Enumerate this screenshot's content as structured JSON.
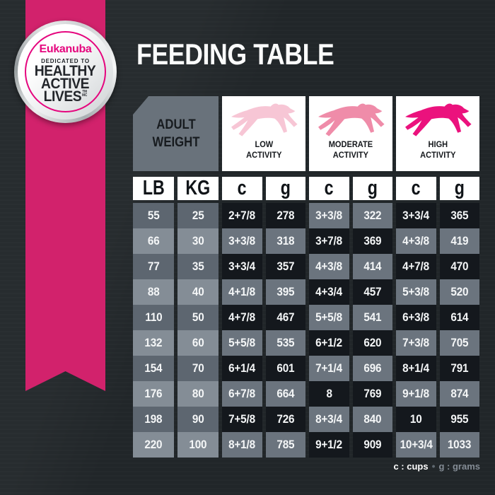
{
  "header": {
    "title": "FEEDING TABLE"
  },
  "badge": {
    "brand": "Eukanuba",
    "dedicated": "DEDICATED TO",
    "line1": "HEALTHY",
    "line2": "ACTIVE",
    "line3": "LIVES",
    "tm": "TM",
    "tm_mc": "MC"
  },
  "colors": {
    "background": "#212629",
    "ribbon_pink": "#D2226C",
    "brand_pink": "#E5067E",
    "dog_low": "#F7C6D5",
    "dog_moderate": "#EF8CA9",
    "dog_high": "#EB127D",
    "cell_dark": "#14181D",
    "cell_slate": "#6B747E",
    "weight_dark": "#5D6670",
    "weight_light": "#848D96",
    "header_gray": "#69727B"
  },
  "table": {
    "adult_weight": {
      "line1": "ADULT",
      "line2": "WEIGHT"
    },
    "activity_columns": [
      {
        "line1": "LOW",
        "line2": "ACTIVITY",
        "dog_color": "#F7C6D5"
      },
      {
        "line1": "MODERATE",
        "line2": "ACTIVITY",
        "dog_color": "#EF8CA9"
      },
      {
        "line1": "HIGH",
        "line2": "ACTIVITY",
        "dog_color": "#EB127D"
      }
    ],
    "unit_headers": [
      "LB",
      "KG",
      "c",
      "g",
      "c",
      "g",
      "c",
      "g"
    ],
    "rows": [
      [
        "55",
        "25",
        "2+7/8",
        "278",
        "3+3/8",
        "322",
        "3+3/4",
        "365"
      ],
      [
        "66",
        "30",
        "3+3/8",
        "318",
        "3+7/8",
        "369",
        "4+3/8",
        "419"
      ],
      [
        "77",
        "35",
        "3+3/4",
        "357",
        "4+3/8",
        "414",
        "4+7/8",
        "470"
      ],
      [
        "88",
        "40",
        "4+1/8",
        "395",
        "4+3/4",
        "457",
        "5+3/8",
        "520"
      ],
      [
        "110",
        "50",
        "4+7/8",
        "467",
        "5+5/8",
        "541",
        "6+3/8",
        "614"
      ],
      [
        "132",
        "60",
        "5+5/8",
        "535",
        "6+1/2",
        "620",
        "7+3/8",
        "705"
      ],
      [
        "154",
        "70",
        "6+1/4",
        "601",
        "7+1/4",
        "696",
        "8+1/4",
        "791"
      ],
      [
        "176",
        "80",
        "6+7/8",
        "664",
        "8",
        "769",
        "9+1/8",
        "874"
      ],
      [
        "198",
        "90",
        "7+5/8",
        "726",
        "8+3/4",
        "840",
        "10",
        "955"
      ],
      [
        "220",
        "100",
        "8+1/8",
        "785",
        "9+1/2",
        "909",
        "10+3/4",
        "1033"
      ]
    ]
  },
  "legend": {
    "cups": "c : cups",
    "separator": "•",
    "grams": "g : grams"
  }
}
